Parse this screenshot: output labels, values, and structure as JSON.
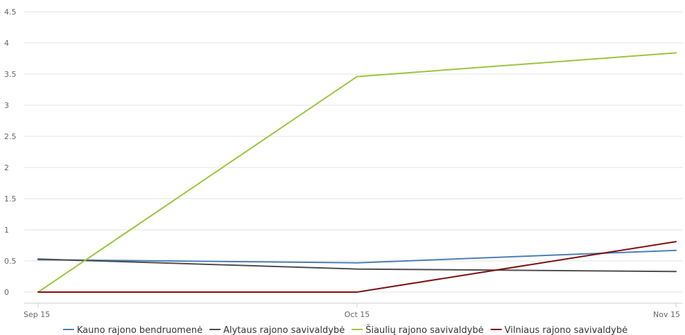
{
  "chart_data": {
    "type": "line",
    "categories": [
      "Sep 15",
      "Oct 15",
      "Nov 15"
    ],
    "ylim": [
      0,
      4.5
    ],
    "yticks": [
      "0",
      "0.5",
      "1",
      "1.5",
      "2",
      "2.5",
      "3",
      "3.5",
      "4",
      "4.5"
    ],
    "grid": true,
    "legend_position": "bottom",
    "series": [
      {
        "name": "Kauno rajono bendruomenė",
        "color": "#4a7fb5",
        "values": [
          0.52,
          0.47,
          0.67
        ]
      },
      {
        "name": "Alytaus rajono savivaldybė",
        "color": "#4d4d4d",
        "values": [
          0.53,
          0.37,
          0.33
        ]
      },
      {
        "name": "Šiaulių rajono savivaldybė",
        "color": "#9bc53d",
        "values": [
          0.0,
          3.46,
          3.84
        ]
      },
      {
        "name": "Vilniaus rajono savivaldybė",
        "color": "#7b1113",
        "values": [
          0.0,
          0.0,
          0.81
        ]
      }
    ]
  }
}
